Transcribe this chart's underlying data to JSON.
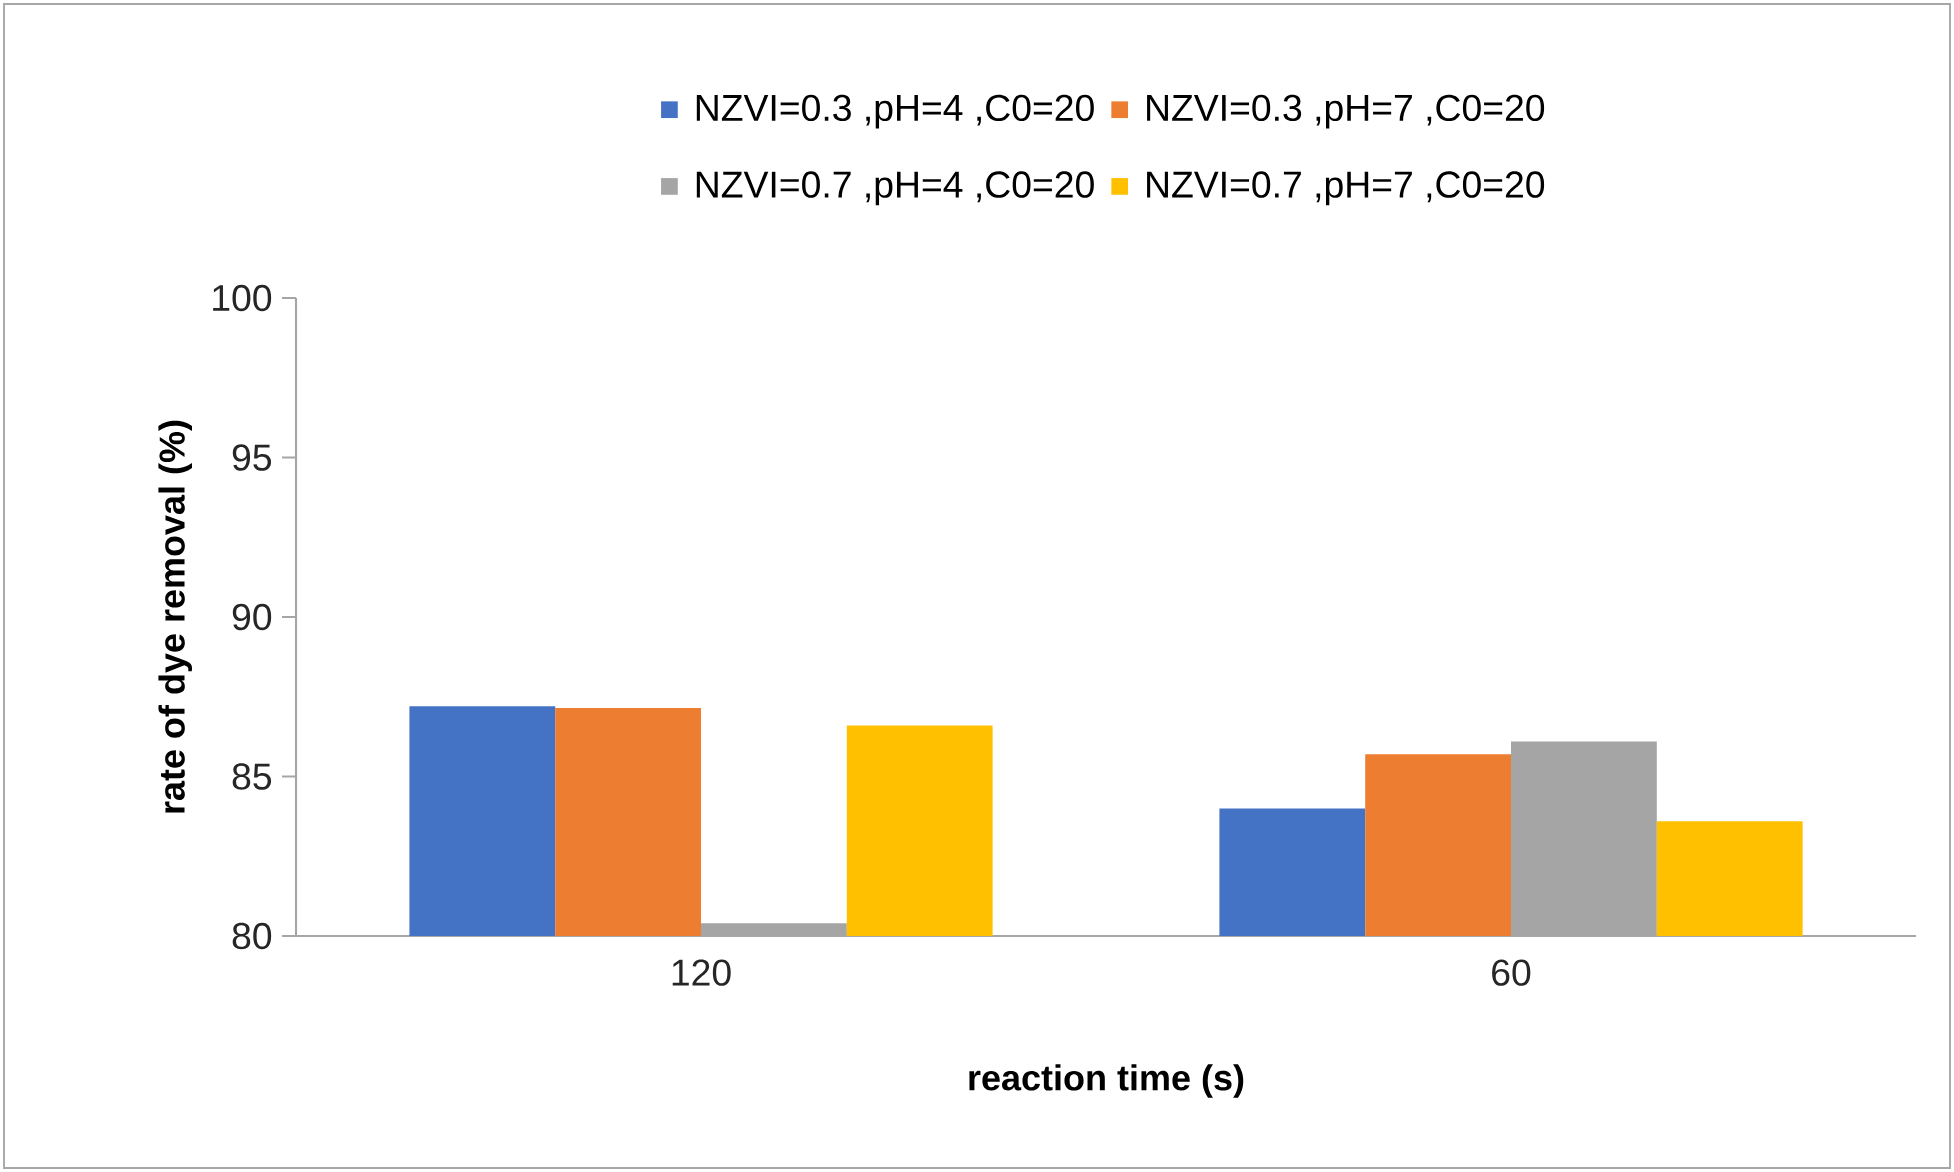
{
  "chart_data": {
    "type": "bar",
    "xlabel": "reaction time (s)",
    "ylabel": "rate of dye removal (%)",
    "categories": [
      "120",
      "60"
    ],
    "series": [
      {
        "name": "NZVI=0.3 ,pH=4 ,C0=20",
        "color": "#4472c4",
        "values": [
          87.2,
          84.0
        ]
      },
      {
        "name": "NZVI=0.3 ,pH=7 ,C0=20",
        "color": "#ed7d31",
        "values": [
          87.15,
          85.7
        ]
      },
      {
        "name": "NZVI=0.7 ,pH=4 ,C0=20",
        "color": "#a5a5a5",
        "values": [
          80.4,
          86.1
        ]
      },
      {
        "name": "NZVI=0.7 ,pH=7 ,C0=20",
        "color": "#ffc000",
        "values": [
          86.6,
          83.6
        ]
      }
    ],
    "ylim": [
      80,
      100
    ],
    "yticks": [
      80,
      85,
      90,
      95,
      100
    ],
    "legend": "top"
  }
}
